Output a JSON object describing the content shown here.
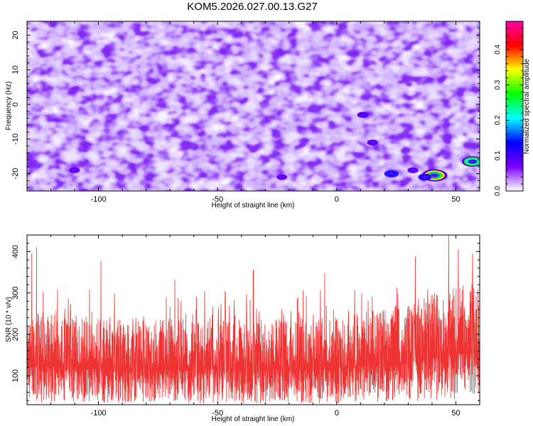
{
  "figure": {
    "title": "KOM5.2026.027.00.13.G27"
  },
  "chart_data": [
    {
      "type": "heatmap",
      "xlabel": "Height of straight line (km)",
      "ylabel": "Frequency (Hz)",
      "xlim": [
        -130,
        60
      ],
      "ylim": [
        -25,
        24
      ],
      "xticks": [
        -100,
        -50,
        0,
        50
      ],
      "yticks": [
        -20,
        -10,
        0,
        10,
        20
      ],
      "colorbar": {
        "label": "Normalized spectral amplitude",
        "range": [
          0.0,
          0.48
        ],
        "ticks": [
          0.0,
          0.1,
          0.2,
          0.3,
          0.4
        ],
        "colors": [
          "#ffffff",
          "#7a00ff",
          "#0000ff",
          "#00ffff",
          "#00ff00",
          "#ffff00",
          "#ff0000",
          "#ff00aa"
        ]
      },
      "background_level": 0.05,
      "hotspots": [
        {
          "x": 41,
          "y": -20.5,
          "value": 0.45
        },
        {
          "x": 57,
          "y": -16.5,
          "value": 0.35
        },
        {
          "x": 23,
          "y": -20,
          "value": 0.18
        },
        {
          "x": 37,
          "y": -21,
          "value": 0.15
        },
        {
          "x": 11,
          "y": -3,
          "value": 0.1
        },
        {
          "x": 15,
          "y": -11,
          "value": 0.09
        },
        {
          "x": 32,
          "y": -19,
          "value": 0.09
        },
        {
          "x": -23,
          "y": -21,
          "value": 0.08
        },
        {
          "x": -110,
          "y": -19,
          "value": 0.08
        }
      ]
    },
    {
      "type": "line",
      "xlabel": "Height of straight line (km)",
      "ylabel": "SNR (10 * v/v)",
      "xlim": [
        -130,
        60
      ],
      "ylim": [
        30,
        440
      ],
      "xticks": [
        -100,
        -50,
        0,
        50
      ],
      "yticks": [
        100,
        200,
        300,
        400
      ],
      "series": [
        {
          "color": "#ee3333",
          "samples": 1900,
          "baseline": [
            {
              "x": -130,
              "y": 125
            },
            {
              "x": -100,
              "y": 118
            },
            {
              "x": -50,
              "y": 115
            },
            {
              "x": 0,
              "y": 118
            },
            {
              "x": 30,
              "y": 135
            },
            {
              "x": 50,
              "y": 155
            },
            {
              "x": 60,
              "y": 160
            }
          ],
          "peaks": [
            {
              "x": -128,
              "y": 395
            },
            {
              "x": -126,
              "y": 410
            },
            {
              "x": -99,
              "y": 378
            },
            {
              "x": -68,
              "y": 332
            },
            {
              "x": -35,
              "y": 355
            },
            {
              "x": -5,
              "y": 348
            },
            {
              "x": 33,
              "y": 388
            },
            {
              "x": 47,
              "y": 440
            },
            {
              "x": 51,
              "y": 405
            },
            {
              "x": 57,
              "y": 395
            }
          ]
        }
      ]
    }
  ]
}
